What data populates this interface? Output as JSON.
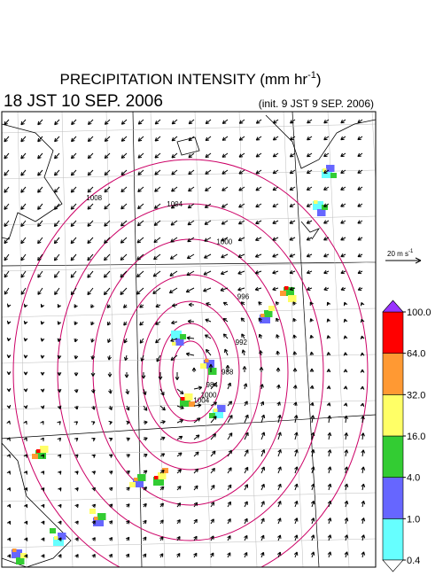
{
  "header": {
    "title": "PRECIPITATION INTENSITY (mm hr",
    "title_exponent": "-1",
    "title_end": ")",
    "valid_time": "18 JST 10 SEP. 2006",
    "init_time": "(init. 9 JST 9 SEP. 2006)"
  },
  "wind_scale": {
    "label": "20 m s",
    "exponent": "-1"
  },
  "colorbar": {
    "levels": [
      0.4,
      {
        "value": 1,
        "label": "1.0"
      },
      {
        "value": 4,
        "label": "4.0"
      },
      {
        "value": 16,
        "label": "16.0"
      },
      {
        "value": 32,
        "label": "32.0"
      },
      {
        "value": 64,
        "label": "64.0"
      },
      {
        "value": 100,
        "label": "100.0"
      }
    ],
    "colors": [
      "#66ffff",
      "#6666ff",
      "#33cc33",
      "#ffff66",
      "#ff9933",
      "#ff0000"
    ],
    "over_color": "#9933ff",
    "under_color": "#ffffff"
  },
  "map": {
    "contour_labels": [
      "1008",
      "1004",
      "1000",
      "996",
      "992",
      "988",
      "984",
      "1000",
      "1004"
    ]
  }
}
